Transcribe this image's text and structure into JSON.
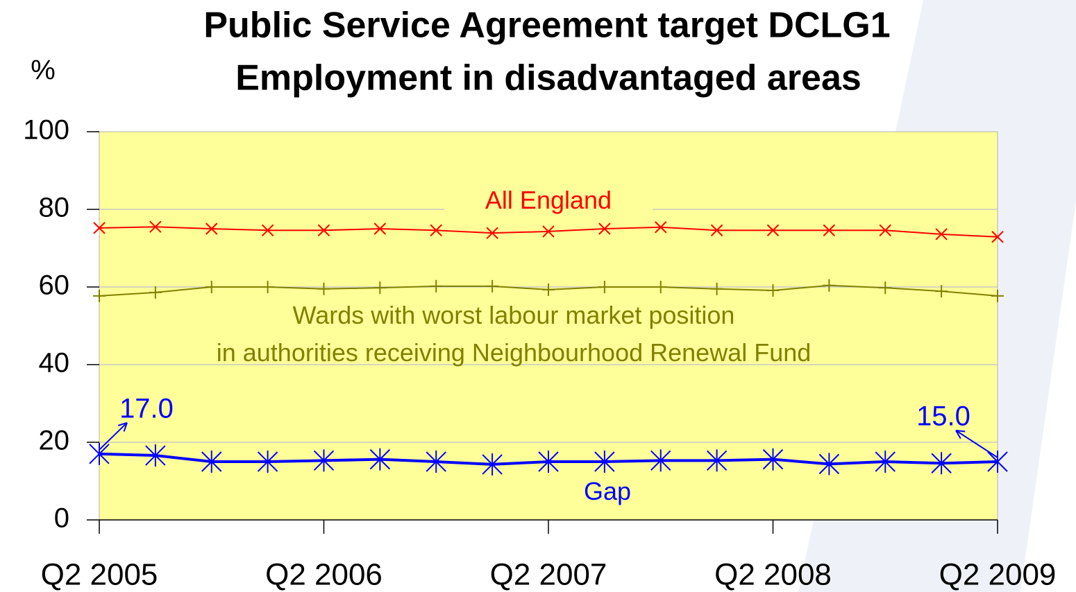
{
  "chart_data": {
    "type": "line",
    "title": "Public Service Agreement target DCLG1",
    "subtitle": "Employment in disadvantaged areas",
    "y_label": "%",
    "categories": [
      "Q2 2005",
      null,
      null,
      null,
      "Q2 2006",
      null,
      null,
      null,
      "Q2 2007",
      null,
      null,
      null,
      "Q2 2008",
      null,
      null,
      null,
      "Q2 2009"
    ],
    "ylim": [
      0,
      100
    ],
    "yticks": [
      0,
      20,
      40,
      60,
      80,
      100
    ],
    "grid": true,
    "legend": "none",
    "series": [
      {
        "name": "All England",
        "color": "#ff0000",
        "marker": "x",
        "values": [
          75.2,
          75.5,
          75.0,
          74.6,
          74.6,
          75.0,
          74.6,
          73.9,
          74.3,
          75.0,
          75.4,
          74.6,
          74.6,
          74.6,
          74.6,
          73.6,
          72.9
        ]
      },
      {
        "name": "Wards with worst labour market position\nin authorities receiving Neighbourhood Renewal Fund",
        "color": "#808000",
        "marker": "plus",
        "values": [
          57.7,
          58.6,
          60.0,
          60.0,
          59.5,
          59.8,
          60.2,
          60.2,
          59.3,
          60.0,
          60.0,
          59.5,
          59.1,
          60.4,
          59.8,
          58.9,
          57.7
        ]
      },
      {
        "name": "Gap",
        "color": "#0000ff",
        "marker": "star",
        "values": [
          17.0,
          16.6,
          15.0,
          15.0,
          15.3,
          15.6,
          15.0,
          14.3,
          15.0,
          15.0,
          15.3,
          15.3,
          15.6,
          14.4,
          15.0,
          14.6,
          15.0
        ],
        "value_labels": [
          "17.0",
          null,
          null,
          null,
          null,
          null,
          null,
          null,
          null,
          null,
          null,
          null,
          null,
          null,
          null,
          null,
          "15.0"
        ]
      }
    ]
  }
}
